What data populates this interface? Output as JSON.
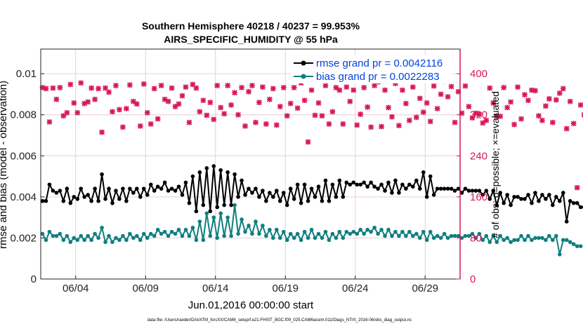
{
  "chart_data": {
    "type": "line",
    "title": "Southern Hemisphere 40218 / 40237 = 99.953%",
    "subtitle": "AIRS_SPECIFIC_HUMIDITY @ 55 hPa",
    "xlabel": "Jun.01,2016 00:00:00 start",
    "ylabel": "rmse and bias (model - observation)",
    "ylabel_right": "# of obs: o=possible; ×=evaluated",
    "footnote": "data file: /Users/raeder/DAI/ATM_forcXX/CAM6_setup/f.e21.FHIST_BGC.f09_025.CAM6assim.011/Diags_NTrS_2016-06/obs_diag_output.nc",
    "xlim": [
      1,
      31
    ],
    "ylim": [
      0,
      0.0112
    ],
    "ylim_right": [
      0,
      448
    ],
    "grid": true,
    "legend_position": "top-right",
    "x_ticks": [
      3.5,
      8.5,
      13.5,
      18.5,
      23.5,
      28.5
    ],
    "x_tick_labels": [
      "06/04",
      "06/09",
      "06/14",
      "06/19",
      "06/24",
      "06/29"
    ],
    "y_ticks": [
      0,
      0.002,
      0.004,
      0.006,
      0.008,
      0.01
    ],
    "y_tick_labels": [
      "0",
      "0.002",
      "0.004",
      "0.006",
      "0.008",
      "0.01"
    ],
    "y_ticks_right": [
      0,
      80,
      160,
      240,
      320,
      400
    ],
    "y_tick_labels_right": [
      "0",
      "80",
      "160",
      "240",
      "320",
      "400"
    ],
    "colors": {
      "rmse": "#000000",
      "bias": "#0f7f7f",
      "obs": "#d6195a",
      "title": "#000000",
      "legend_text": "#0044dd",
      "grid": "#e6cfd6"
    },
    "series": [
      {
        "name": "rmse grand pr = 0.0042116",
        "axis": "left",
        "x_start": 1.125,
        "x_step": 0.25,
        "values": [
          0.0038,
          0.0038,
          0.0046,
          0.0043,
          0.0042,
          0.0043,
          0.0038,
          0.0044,
          0.0037,
          0.004,
          0.0039,
          0.0044,
          0.004,
          0.0041,
          0.0038,
          0.0044,
          0.0038,
          0.0051,
          0.0039,
          0.0044,
          0.0037,
          0.0043,
          0.0039,
          0.0044,
          0.0038,
          0.0044,
          0.0042,
          0.0044,
          0.004,
          0.0044,
          0.0041,
          0.0046,
          0.0043,
          0.0045,
          0.0044,
          0.0047,
          0.0043,
          0.0044,
          0.0043,
          0.0045,
          0.0041,
          0.0047,
          0.0037,
          0.005,
          0.0033,
          0.0052,
          0.0036,
          0.0054,
          0.0033,
          0.0055,
          0.0035,
          0.0053,
          0.0036,
          0.0052,
          0.0036,
          0.0051,
          0.004,
          0.0048,
          0.0041,
          0.0044,
          0.0042,
          0.0044,
          0.004,
          0.0043,
          0.0038,
          0.0042,
          0.004,
          0.0043,
          0.0038,
          0.0042,
          0.0036,
          0.0044,
          0.0039,
          0.0046,
          0.0037,
          0.0046,
          0.0038,
          0.0044,
          0.004,
          0.0045,
          0.0038,
          0.0048,
          0.0038,
          0.0046,
          0.004,
          0.0048,
          0.004,
          0.0047,
          0.0046,
          0.0047,
          0.0046,
          0.0046,
          0.0047,
          0.0045,
          0.0047,
          0.0045,
          0.0044,
          0.0046,
          0.0043,
          0.0047,
          0.0042,
          0.0048,
          0.0042,
          0.0046,
          0.0044,
          0.0046,
          0.0045,
          0.0048,
          0.0044,
          0.0052,
          0.004,
          0.005,
          0.0041,
          0.0044,
          0.0044,
          0.0044,
          0.0044,
          0.0044,
          0.0043,
          0.0044,
          0.0042,
          0.0044,
          0.0043,
          0.0043,
          0.0043,
          0.0043,
          0.0041,
          0.0043,
          0.0039,
          0.0043,
          0.0036,
          0.0042,
          0.0037,
          0.0041,
          0.0036,
          0.004,
          0.004,
          0.0039,
          0.0039,
          0.0041,
          0.0037,
          0.0042,
          0.0038,
          0.0041,
          0.0039,
          0.0041,
          0.0036,
          0.004,
          0.0038,
          0.0042,
          0.0028,
          0.0038,
          0.0037,
          0.0037,
          0.0035,
          0.0035,
          0.0035
        ]
      },
      {
        "name": "bias grand pr = 0.0022283",
        "axis": "left",
        "x_start": 1.125,
        "x_step": 0.25,
        "values": [
          0.0022,
          0.0019,
          0.0023,
          0.0021,
          0.0021,
          0.0022,
          0.0019,
          0.0021,
          0.0018,
          0.002,
          0.0019,
          0.0021,
          0.0019,
          0.0021,
          0.0019,
          0.0022,
          0.002,
          0.0025,
          0.0018,
          0.0021,
          0.0018,
          0.002,
          0.0019,
          0.0021,
          0.0019,
          0.0022,
          0.002,
          0.0021,
          0.0019,
          0.0022,
          0.002,
          0.0022,
          0.0021,
          0.0024,
          0.0022,
          0.0023,
          0.0021,
          0.0023,
          0.0022,
          0.0024,
          0.0021,
          0.0024,
          0.0021,
          0.0025,
          0.0019,
          0.0028,
          0.0019,
          0.0032,
          0.0021,
          0.003,
          0.002,
          0.0032,
          0.0021,
          0.003,
          0.0021,
          0.0036,
          0.0022,
          0.0029,
          0.0023,
          0.0026,
          0.0022,
          0.0028,
          0.0022,
          0.0026,
          0.0021,
          0.0024,
          0.002,
          0.0024,
          0.002,
          0.0023,
          0.0019,
          0.0022,
          0.002,
          0.0022,
          0.0019,
          0.0023,
          0.002,
          0.0024,
          0.002,
          0.0022,
          0.002,
          0.0023,
          0.0019,
          0.0022,
          0.002,
          0.0023,
          0.002,
          0.0023,
          0.0022,
          0.0023,
          0.0022,
          0.0024,
          0.0022,
          0.0024,
          0.0023,
          0.0025,
          0.0022,
          0.0024,
          0.0021,
          0.0024,
          0.0021,
          0.0023,
          0.0021,
          0.0023,
          0.0021,
          0.0023,
          0.0021,
          0.0022,
          0.002,
          0.0023,
          0.0019,
          0.0023,
          0.002,
          0.0021,
          0.002,
          0.0022,
          0.002,
          0.0021,
          0.0021,
          0.0021,
          0.002,
          0.0021,
          0.0021,
          0.0022,
          0.002,
          0.0022,
          0.0019,
          0.0021,
          0.0018,
          0.0021,
          0.0018,
          0.0021,
          0.0019,
          0.002,
          0.0018,
          0.0019,
          0.0019,
          0.0021,
          0.0019,
          0.0021,
          0.0019,
          0.002,
          0.002,
          0.002,
          0.0019,
          0.0021,
          0.0019,
          0.0021,
          0.0012,
          0.0019,
          0.0019,
          0.0018,
          0.0017,
          0.0016,
          0.0016
        ]
      },
      {
        "name": "obs evaluated",
        "axis": "right",
        "marker": "x",
        "x_start": 1.125,
        "x_step": 0.25,
        "values": [
          373,
          371,
          306,
          372,
          350,
          373,
          318,
          324,
          379,
          343,
          324,
          382,
          342,
          345,
          372,
          350,
          371,
          286,
          372,
          364,
          326,
          377,
          330,
          296,
          332,
          378,
          346,
          341,
          298,
          380,
          324,
          302,
          371,
          312,
          377,
          350,
          346,
          372,
          336,
          341,
          357,
          374,
          305,
          379,
          372,
          326,
          348,
          319,
          344,
          311,
          377,
          334,
          322,
          377,
          339,
          363,
          320,
          373,
          298,
          365,
          377,
          305,
          344,
          374,
          302,
          350,
          371,
          300,
          336,
          373,
          318,
          342,
          373,
          333,
          382,
          348,
          267,
          368,
          319,
          343,
          318,
          377,
          302,
          326,
          373,
          368,
          302,
          374,
          346,
          368,
          300,
          321,
          373,
          335,
          296,
          377,
          384,
          297,
          368,
          334,
          316,
          381,
          299,
          368,
          342,
          309,
          374,
          315,
          352,
          325,
          343,
          307,
          376,
          332,
          360,
          386,
          355,
          375,
          305,
          365,
          323,
          376,
          336,
          314,
          323,
          321,
          304,
          309,
          372,
          343,
          318,
          317,
          373,
          334,
          345,
          301,
          374,
          312,
          359,
          348,
          368,
          367,
          318,
          309,
          337,
          351,
          305,
          349,
          362,
          371,
          293,
          346,
          303,
          178,
          339,
          320,
          305,
          303
        ]
      }
    ]
  }
}
